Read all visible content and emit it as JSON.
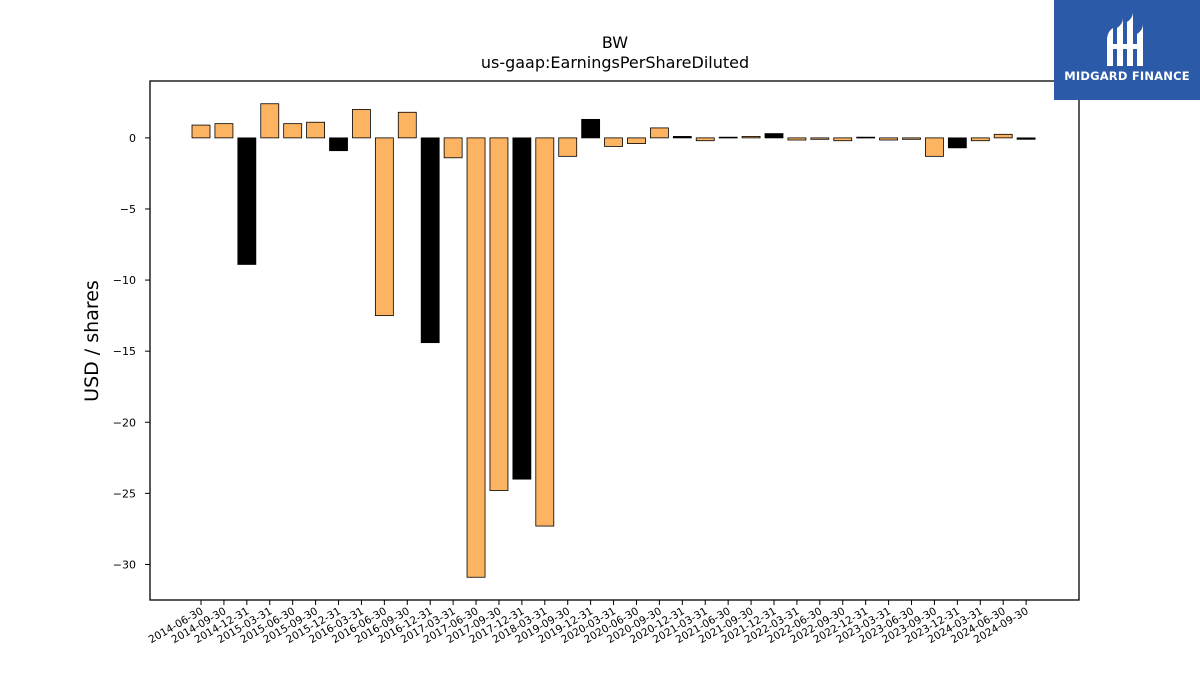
{
  "chart_data": {
    "type": "bar",
    "title": "BW",
    "subtitle": "us-gaap:EarningsPerShareDiluted",
    "xlabel": "",
    "ylabel": "USD / shares",
    "ylim": [
      -32.5,
      4.0
    ],
    "yticks": [
      0,
      -5,
      -10,
      -15,
      -20,
      -25,
      -30
    ],
    "ytick_labels": [
      "0",
      "−5",
      "−10",
      "−15",
      "−20",
      "−25",
      "−30"
    ],
    "grid": false,
    "legend": "none",
    "categories": [
      "2014-06-30",
      "2014-09-30",
      "2014-12-31",
      "2015-03-31",
      "2015-06-30",
      "2015-09-30",
      "2015-12-31",
      "2016-03-31",
      "2016-06-30",
      "2016-09-30",
      "2016-12-31",
      "2017-03-31",
      "2017-06-30",
      "2017-09-30",
      "2017-12-31",
      "2018-03-31",
      "2019-09-30",
      "2019-12-31",
      "2020-03-31",
      "2020-06-30",
      "2020-09-30",
      "2020-12-31",
      "2021-03-31",
      "2021-06-30",
      "2021-09-30",
      "2021-12-31",
      "2022-03-31",
      "2022-06-30",
      "2022-09-30",
      "2022-12-31",
      "2023-03-31",
      "2023-06-30",
      "2023-09-30",
      "2023-12-31",
      "2024-03-31",
      "2024-06-30",
      "2024-09-30"
    ],
    "values": [
      0.9,
      1.0,
      -8.9,
      2.4,
      1.0,
      1.1,
      -0.9,
      2.0,
      -12.5,
      1.8,
      -14.4,
      -1.4,
      -30.9,
      -24.8,
      -24.0,
      -27.3,
      -1.3,
      1.3,
      -0.6,
      -0.4,
      0.7,
      0.1,
      -0.2,
      0.05,
      0.1,
      0.3,
      -0.15,
      -0.1,
      -0.2,
      0.05,
      -0.15,
      -0.1,
      -1.3,
      -0.7,
      -0.2,
      0.25,
      -0.1
    ],
    "colors": [
      "orange",
      "orange",
      "black",
      "orange",
      "orange",
      "orange",
      "black",
      "orange",
      "orange",
      "orange",
      "black",
      "orange",
      "orange",
      "orange",
      "black",
      "orange",
      "orange",
      "black",
      "orange",
      "orange",
      "orange",
      "black",
      "orange",
      "orange",
      "orange",
      "black",
      "orange",
      "orange",
      "orange",
      "black",
      "orange",
      "orange",
      "orange",
      "black",
      "orange",
      "orange",
      "black"
    ],
    "palette": {
      "orange": "#fdb462",
      "black": "#000000",
      "edge": "#000000"
    }
  },
  "logo": {
    "text": "MIDGARD FINANCE",
    "background": "#2a5aa8",
    "icon": "midgard-logo-icon"
  }
}
